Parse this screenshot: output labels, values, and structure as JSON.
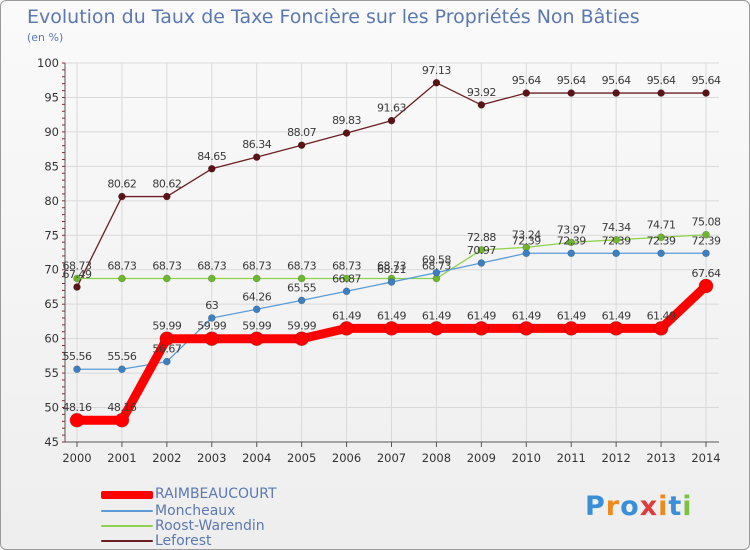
{
  "title": "Evolution du Taux de Taxe Foncière sur les Propriétés Non Bâties",
  "unit_label": "(en %)",
  "logo_text": "Proxiti",
  "colors": {
    "raimbeaucourt": "#ff0000",
    "moncheaux": "#5b9bd5",
    "roost_warendin": "#8fd14f",
    "leforest": "#6b1f23",
    "grid": "#d9d9d9",
    "axis": "#555555",
    "text": "#333333",
    "title": "#5b78b0"
  },
  "chart_data": {
    "type": "line",
    "title": "Evolution du Taux de Taxe Foncière sur les Propriétés Non Bâties",
    "ylabel": "(en %)",
    "xlabel": "",
    "categories": [
      "2000",
      "2001",
      "2002",
      "2003",
      "2004",
      "2005",
      "2006",
      "2007",
      "2008",
      "2009",
      "2010",
      "2011",
      "2012",
      "2013",
      "2014"
    ],
    "ylim": [
      45,
      100
    ],
    "yticks": [
      45,
      50,
      55,
      60,
      65,
      70,
      75,
      80,
      85,
      90,
      95,
      100
    ],
    "grid": true,
    "legend": "bottom-left",
    "series": [
      {
        "name": "RAIMBEAUCOURT",
        "key": "raimbeaucourt",
        "values": [
          48.16,
          48.16,
          59.99,
          59.99,
          59.99,
          59.99,
          61.49,
          61.49,
          61.49,
          61.49,
          61.49,
          61.49,
          61.49,
          61.49,
          67.64
        ],
        "labels": [
          "48.16",
          "48.16",
          "59.99",
          "59.99",
          "59.99",
          "59.99",
          "61.49",
          "61.49",
          "61.49",
          "61.49",
          "61.49",
          "61.49",
          "61.49",
          "61.49",
          "67.64"
        ]
      },
      {
        "name": "Moncheaux",
        "key": "moncheaux",
        "values": [
          55.56,
          55.56,
          56.67,
          63,
          64.26,
          65.55,
          66.87,
          68.21,
          69.58,
          70.97,
          72.39,
          72.39,
          72.39,
          72.39,
          72.39
        ],
        "labels": [
          "55.56",
          "55.56",
          "56.67",
          "63",
          "64.26",
          "65.55",
          "66.87",
          "68.21",
          "69.58",
          "70.97",
          "72.39",
          "72.39",
          "72.39",
          "72.39",
          "72.39"
        ]
      },
      {
        "name": "Roost-Warendin",
        "key": "roost_warendin",
        "values": [
          68.73,
          68.73,
          68.73,
          68.73,
          68.73,
          68.73,
          68.73,
          68.73,
          68.73,
          72.88,
          73.24,
          73.97,
          74.34,
          74.71,
          75.08
        ],
        "labels": [
          "68.73",
          "68.73",
          "68.73",
          "68.73",
          "68.73",
          "68.73",
          "68.73",
          "68.73",
          "68.73",
          "72.88",
          "73.24",
          "73.97",
          "74.34",
          "74.71",
          "75.08"
        ]
      },
      {
        "name": "Leforest",
        "key": "leforest",
        "values": [
          67.49,
          80.62,
          80.62,
          84.65,
          86.34,
          88.07,
          89.83,
          91.63,
          97.13,
          93.92,
          95.64,
          95.64,
          95.64,
          95.64,
          95.64
        ],
        "labels": [
          "67.49",
          "80.62",
          "80.62",
          "84.65",
          "86.34",
          "88.07",
          "89.83",
          "91.63",
          "97.13",
          "93.92",
          "95.64",
          "95.64",
          "95.64",
          "95.64",
          "95.64"
        ]
      }
    ]
  }
}
